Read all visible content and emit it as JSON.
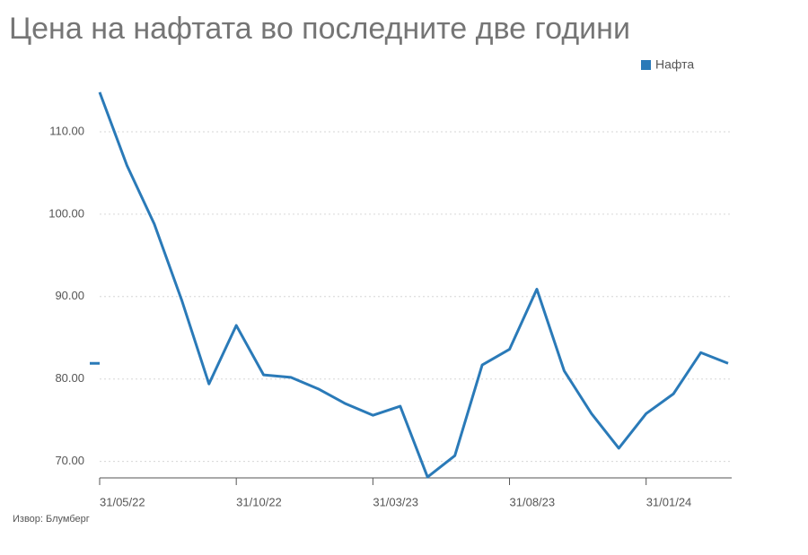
{
  "chart_data": {
    "type": "line",
    "title": "Цена на нафтата во последните две години",
    "source": "Извор: Блумберг",
    "categories": [
      "31/05/22",
      null,
      null,
      null,
      null,
      "31/10/22",
      null,
      null,
      null,
      null,
      "31/03/23",
      null,
      null,
      null,
      null,
      "31/08/23",
      null,
      null,
      null,
      null,
      "31/01/24",
      null,
      null,
      null
    ],
    "series": [
      {
        "name": "Нафта",
        "color": "#2a7ab8",
        "values": [
          114.8,
          105.9,
          98.8,
          89.6,
          79.4,
          86.5,
          80.5,
          80.2,
          78.8,
          77.0,
          75.6,
          76.7,
          68.1,
          70.7,
          81.7,
          83.6,
          90.9,
          81.0,
          75.8,
          71.6,
          75.8,
          78.2,
          83.2,
          81.9
        ]
      }
    ],
    "ylim": [
      68,
      115
    ],
    "yticks": [
      {
        "value": 70,
        "label": "70.00"
      },
      {
        "value": 80,
        "label": "80.00"
      },
      {
        "value": 90,
        "label": "90.00"
      },
      {
        "value": 100,
        "label": "100.00"
      },
      {
        "value": 110,
        "label": "110.00"
      }
    ],
    "grid": true,
    "legend": "top-right"
  }
}
